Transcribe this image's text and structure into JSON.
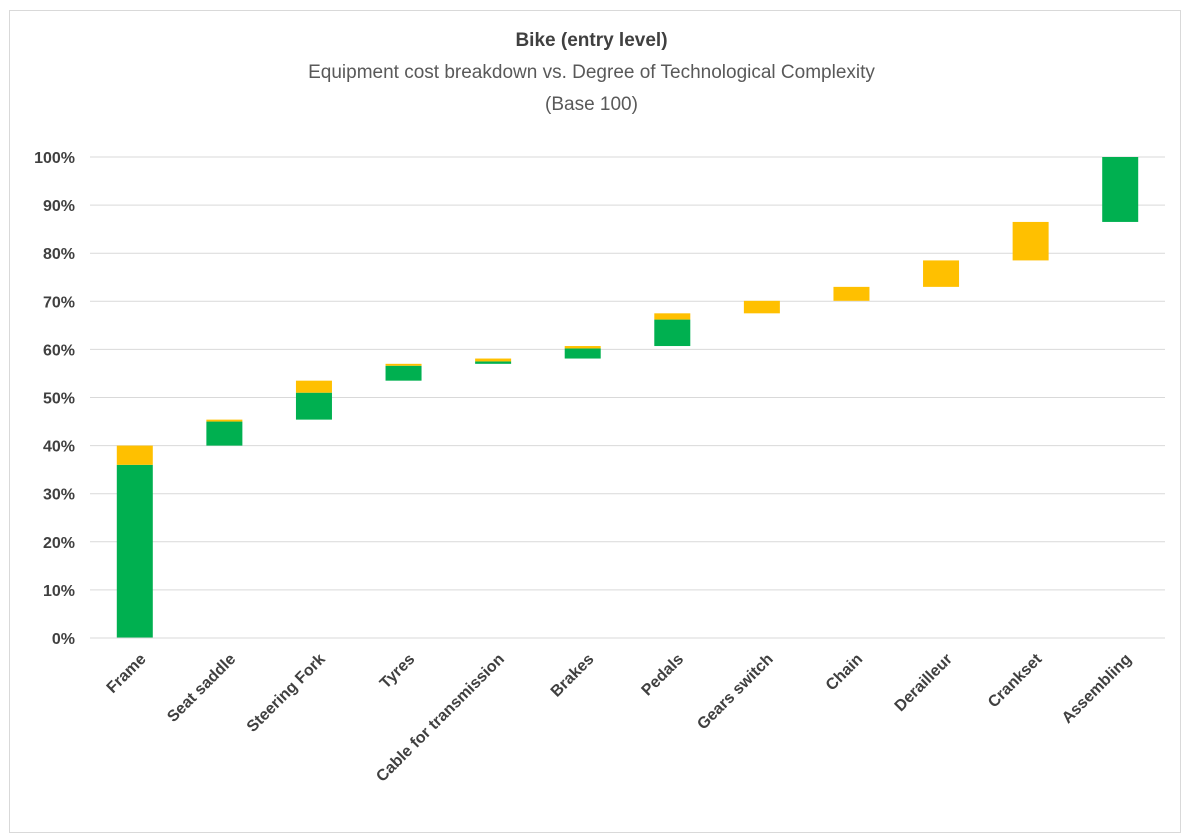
{
  "chart_data": {
    "type": "bar",
    "subtype": "stacked-waterfall",
    "title": "Bike (entry level)",
    "subtitle": "Equipment cost breakdown vs. Degree of Technological Complexity",
    "subtitle2": "(Base 100)",
    "categories": [
      "Frame",
      "Seat saddle",
      "Steering Fork",
      "Tyres",
      "Cable for transmission",
      "Brakes",
      "Pedals",
      "Gears switch",
      "Chain",
      "Derailleur",
      "Crankset",
      "Assembling"
    ],
    "segments": [
      {
        "category": "Frame",
        "base": 0,
        "green": 36,
        "yellow": 4
      },
      {
        "category": "Seat saddle",
        "base": 40,
        "green": 5,
        "yellow": 0.4
      },
      {
        "category": "Steering Fork",
        "base": 45.4,
        "green": 5.6,
        "yellow": 2.5
      },
      {
        "category": "Tyres",
        "base": 53.5,
        "green": 3.1,
        "yellow": 0.4
      },
      {
        "category": "Cable for transmission",
        "base": 57,
        "green": 0.5,
        "yellow": 0.6
      },
      {
        "category": "Brakes",
        "base": 58.1,
        "green": 2.1,
        "yellow": 0.5
      },
      {
        "category": "Pedals",
        "base": 60.7,
        "green": 5.5,
        "yellow": 1.3
      },
      {
        "category": "Gears switch",
        "base": 67.5,
        "green": 0,
        "yellow": 2.6
      },
      {
        "category": "Chain",
        "base": 70.1,
        "green": 0,
        "yellow": 2.9
      },
      {
        "category": "Derailleur",
        "base": 73,
        "green": 0,
        "yellow": 5.5
      },
      {
        "category": "Crankset",
        "base": 78.5,
        "green": 0,
        "yellow": 8
      },
      {
        "category": "Assembling",
        "base": 86.5,
        "green": 13.5,
        "yellow": 0
      }
    ],
    "ylim": [
      0,
      100
    ],
    "yticks": [
      "0%",
      "10%",
      "20%",
      "30%",
      "40%",
      "50%",
      "60%",
      "70%",
      "80%",
      "90%",
      "100%"
    ],
    "grid": true,
    "colors": {
      "green": "#00b050",
      "yellow": "#ffc000",
      "grid": "#d9d9d9"
    }
  }
}
